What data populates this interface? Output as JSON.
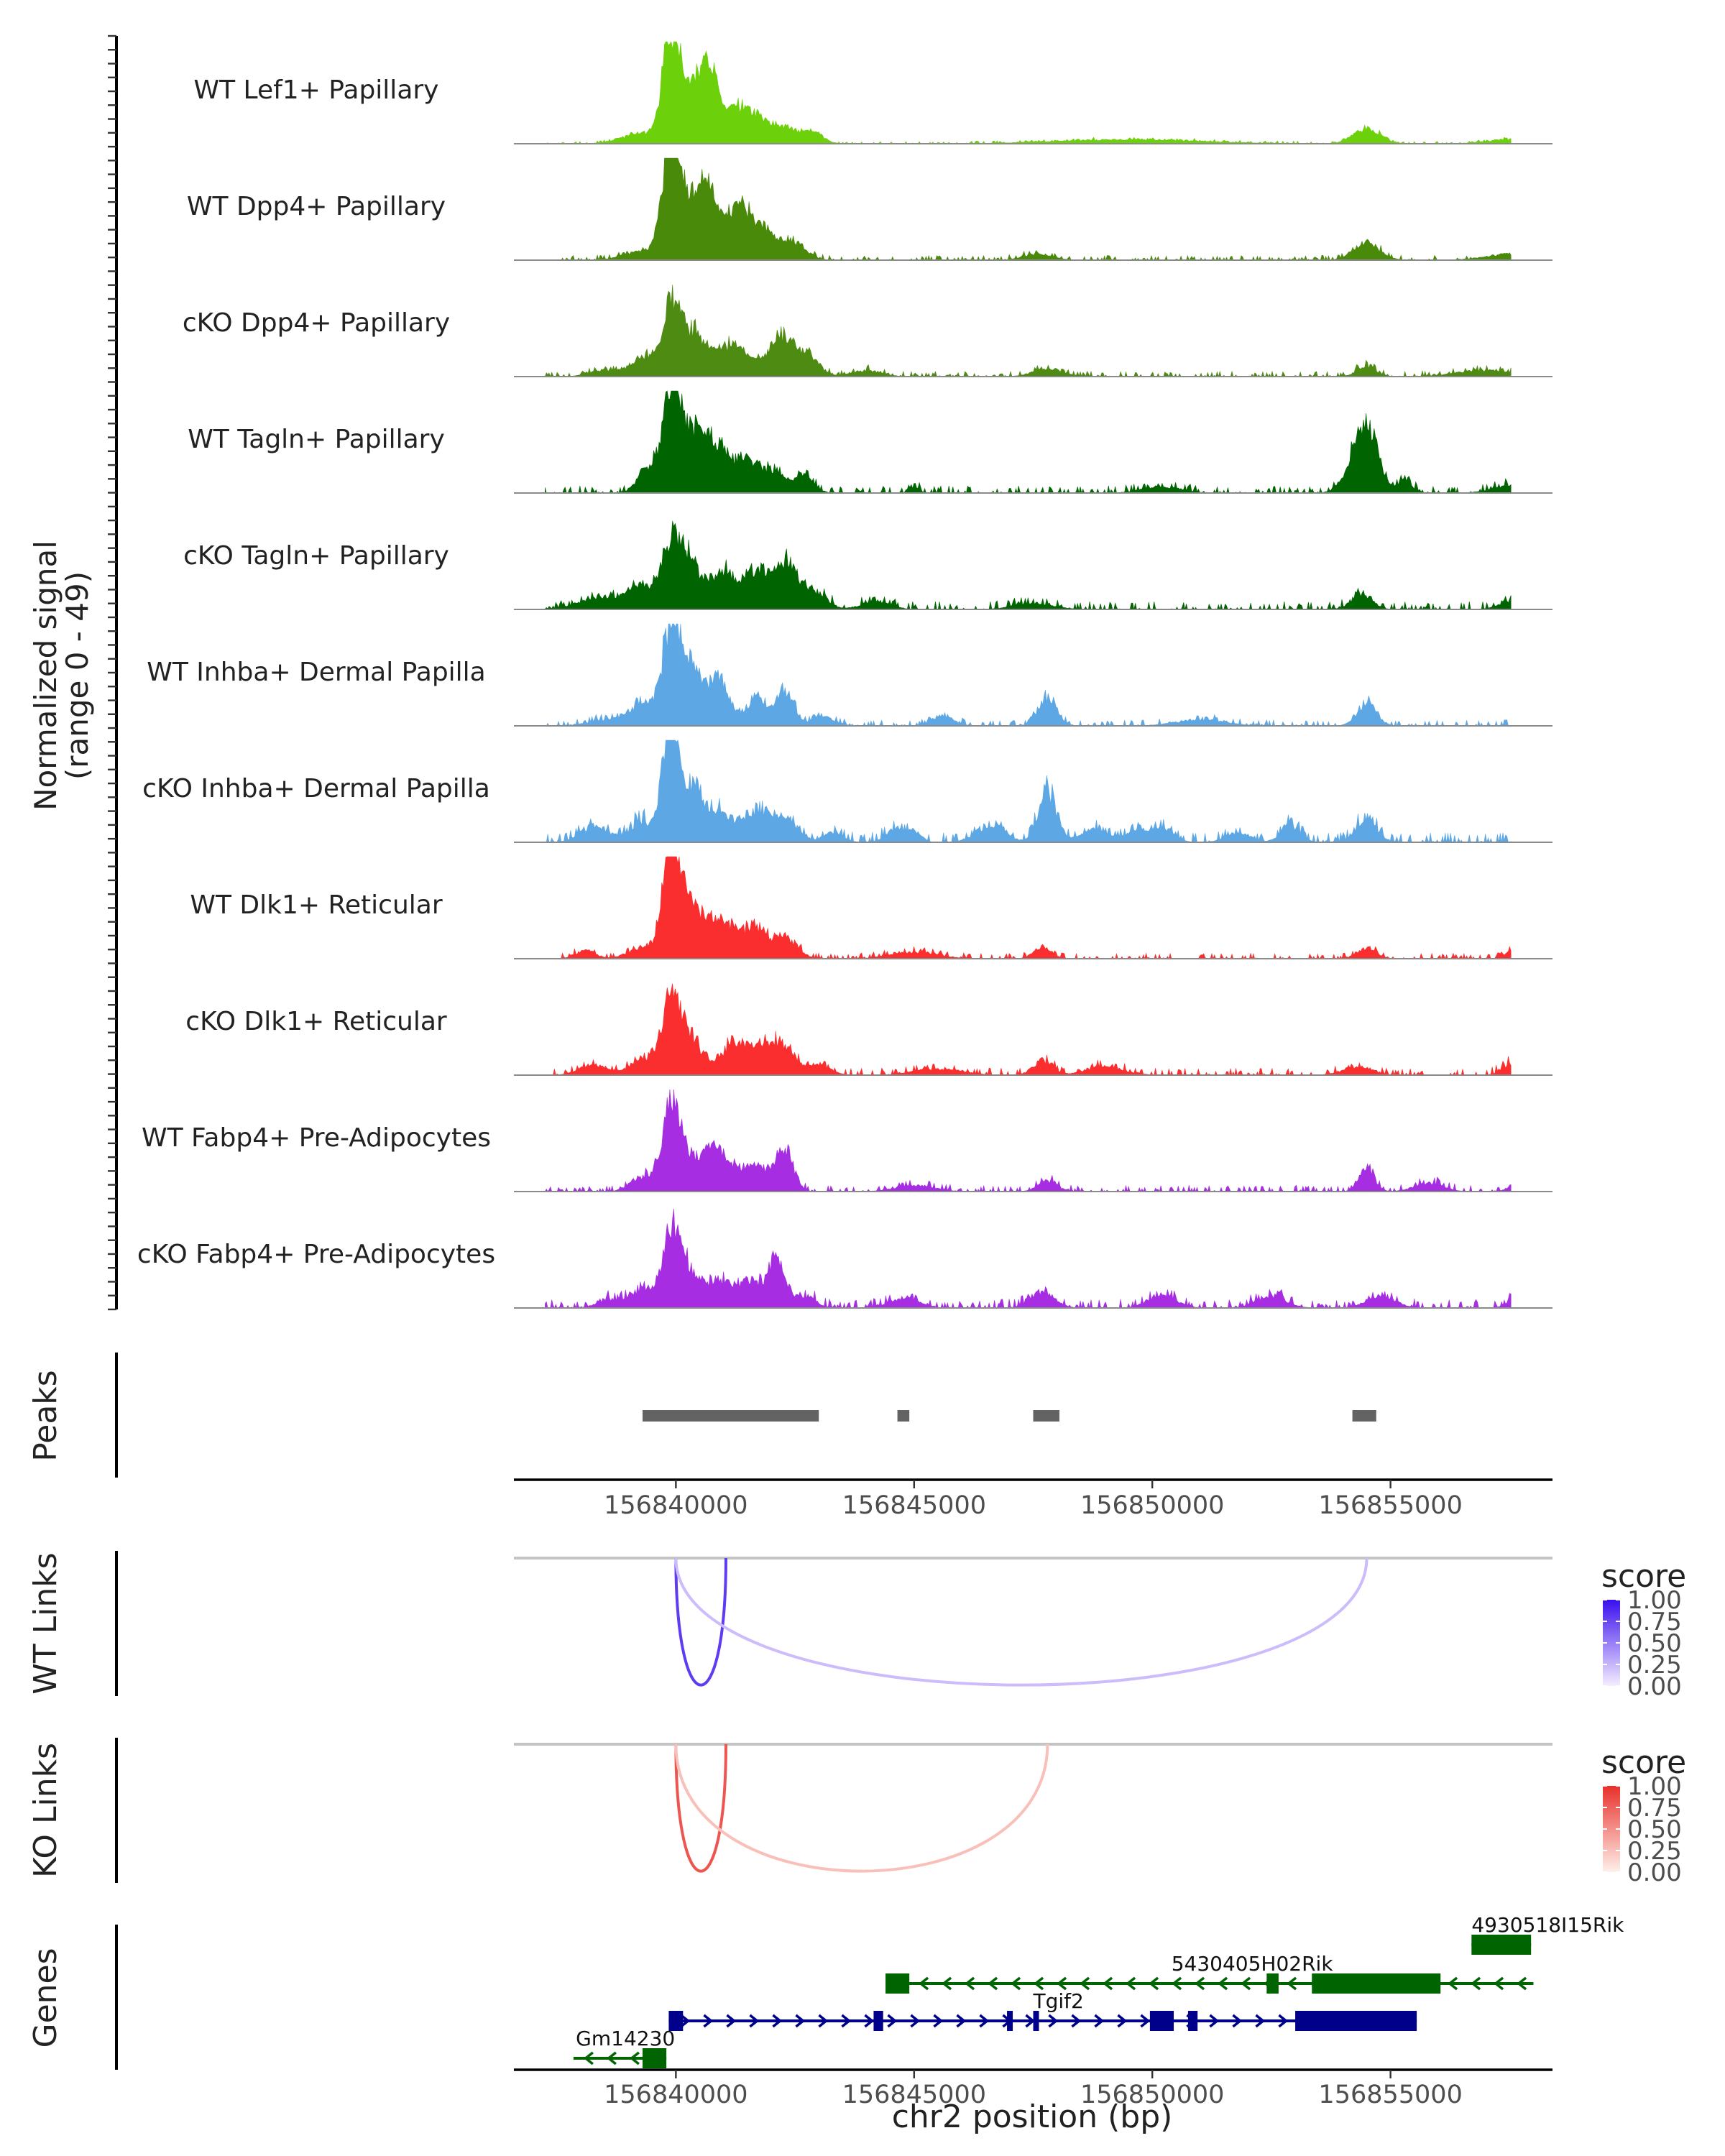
{
  "chart_data": {
    "type": "area",
    "title": "",
    "xlabel": "chr2 position (bp)",
    "ylabel_line1": "Normalized signal",
    "ylabel_line2": "(range 0 - 49)",
    "xlim": [
      156836600,
      156858400
    ],
    "x_ticks": [
      156840000,
      156845000,
      156850000,
      156855000
    ],
    "x_tick_labels": [
      "156840000",
      "156845000",
      "156850000",
      "156855000"
    ],
    "signal_range": [
      0,
      49
    ],
    "coverage_tracks": [
      {
        "name": "WT Lef1+ Papillary",
        "color": "#6CD00A",
        "max": 49,
        "peaks": [
          [
            156839300,
            5,
            400
          ],
          [
            156839900,
            49,
            180
          ],
          [
            156840300,
            20,
            250
          ],
          [
            156840700,
            32,
            220
          ],
          [
            156841300,
            15,
            250
          ],
          [
            156841800,
            10,
            300
          ],
          [
            156842400,
            6,
            250
          ],
          [
            156842900,
            5,
            200
          ],
          [
            156849500,
            2,
            1500
          ],
          [
            156854500,
            7,
            280
          ],
          [
            156857500,
            2,
            500
          ]
        ],
        "noise": 0.6,
        "seed": 11
      },
      {
        "name": "WT Dpp4+ Papillary",
        "color": "#4A8A0A",
        "max": 49,
        "peaks": [
          [
            156839300,
            4,
            400
          ],
          [
            156839900,
            55,
            180
          ],
          [
            156840300,
            22,
            250
          ],
          [
            156840700,
            30,
            220
          ],
          [
            156841300,
            22,
            250
          ],
          [
            156841800,
            14,
            300
          ],
          [
            156842500,
            8,
            250
          ],
          [
            156847600,
            3,
            300
          ],
          [
            156854500,
            8,
            280
          ],
          [
            156857500,
            3,
            500
          ]
        ],
        "noise": 1.2,
        "seed": 23
      },
      {
        "name": "cKO Dpp4+ Papillary",
        "color": "#4E8B12",
        "max": 49,
        "peaks": [
          [
            156838500,
            3,
            300
          ],
          [
            156839300,
            9,
            250
          ],
          [
            156839900,
            32,
            200
          ],
          [
            156840400,
            20,
            280
          ],
          [
            156841200,
            15,
            300
          ],
          [
            156842200,
            20,
            280
          ],
          [
            156842800,
            9,
            220
          ],
          [
            156844000,
            3,
            300
          ],
          [
            156847800,
            4,
            300
          ],
          [
            156854500,
            5,
            200
          ],
          [
            156857000,
            3,
            600
          ]
        ],
        "noise": 1.3,
        "seed": 37
      },
      {
        "name": "WT Tagln+ Papillary",
        "color": "#006400",
        "max": 49,
        "peaks": [
          [
            156839400,
            12,
            200
          ],
          [
            156839900,
            52,
            170
          ],
          [
            156840300,
            28,
            220
          ],
          [
            156840800,
            24,
            220
          ],
          [
            156841400,
            15,
            250
          ],
          [
            156842000,
            10,
            300
          ],
          [
            156842700,
            7,
            200
          ],
          [
            156845000,
            3,
            100
          ],
          [
            156850200,
            3,
            400
          ],
          [
            156854300,
            18,
            250
          ],
          [
            156854600,
            22,
            200
          ],
          [
            156855300,
            6,
            150
          ],
          [
            156857600,
            4,
            400
          ]
        ],
        "noise": 1.8,
        "seed": 41
      },
      {
        "name": "cKO Tagln+ Papillary",
        "color": "#006400",
        "max": 49,
        "peaks": [
          [
            156838500,
            6,
            500
          ],
          [
            156839300,
            10,
            250
          ],
          [
            156839900,
            30,
            200
          ],
          [
            156840300,
            20,
            240
          ],
          [
            156841000,
            17,
            260
          ],
          [
            156841700,
            19,
            260
          ],
          [
            156842300,
            22,
            220
          ],
          [
            156842900,
            9,
            250
          ],
          [
            156844200,
            4,
            300
          ],
          [
            156847500,
            3,
            400
          ],
          [
            156854400,
            7,
            220
          ],
          [
            156857600,
            4,
            300
          ]
        ],
        "noise": 2.0,
        "seed": 53
      },
      {
        "name": "WT Inhba+ Dermal Papilla",
        "color": "#5DA7E5",
        "max": 49,
        "peaks": [
          [
            156838600,
            3,
            400
          ],
          [
            156839300,
            10,
            250
          ],
          [
            156839900,
            45,
            190
          ],
          [
            156840300,
            27,
            240
          ],
          [
            156840900,
            22,
            220
          ],
          [
            156841700,
            14,
            220
          ],
          [
            156842300,
            17,
            180
          ],
          [
            156843100,
            4,
            250
          ],
          [
            156845600,
            5,
            220
          ],
          [
            156847800,
            14,
            190
          ],
          [
            156851000,
            3,
            500
          ],
          [
            156854500,
            11,
            200
          ]
        ],
        "noise": 1.5,
        "seed": 61
      },
      {
        "name": "cKO Inhba+ Dermal Papilla",
        "color": "#5DA7E5",
        "max": 49,
        "peaks": [
          [
            156838300,
            8,
            300
          ],
          [
            156839300,
            10,
            250
          ],
          [
            156839900,
            64,
            160
          ],
          [
            156840400,
            24,
            240
          ],
          [
            156841000,
            13,
            250
          ],
          [
            156841700,
            15,
            250
          ],
          [
            156842300,
            12,
            250
          ],
          [
            156843300,
            5,
            200
          ],
          [
            156844600,
            6,
            200
          ],
          [
            156845000,
            5,
            150
          ],
          [
            156846600,
            8,
            300
          ],
          [
            156847800,
            24,
            190
          ],
          [
            156848800,
            6,
            300
          ],
          [
            156849800,
            6,
            300
          ],
          [
            156850300,
            5,
            200
          ],
          [
            156851800,
            5,
            250
          ],
          [
            156852900,
            8,
            200
          ],
          [
            156854500,
            12,
            200
          ]
        ],
        "noise": 2.4,
        "seed": 71
      },
      {
        "name": "WT Dlk1+ Reticular",
        "color": "#FA2E2E",
        "max": 49,
        "peaks": [
          [
            156838100,
            4,
            200
          ],
          [
            156839300,
            5,
            300
          ],
          [
            156839900,
            56,
            170
          ],
          [
            156840300,
            25,
            250
          ],
          [
            156840900,
            18,
            250
          ],
          [
            156841600,
            15,
            280
          ],
          [
            156842300,
            10,
            250
          ],
          [
            156845000,
            3,
            500
          ],
          [
            156847700,
            6,
            180
          ],
          [
            156854500,
            5,
            200
          ],
          [
            156857700,
            6,
            200
          ]
        ],
        "noise": 1.4,
        "seed": 83
      },
      {
        "name": "cKO Dlk1+ Reticular",
        "color": "#FA2E2E",
        "max": 49,
        "peaks": [
          [
            156838300,
            5,
            300
          ],
          [
            156839300,
            8,
            250
          ],
          [
            156839900,
            34,
            190
          ],
          [
            156840300,
            17,
            250
          ],
          [
            156841200,
            15,
            260
          ],
          [
            156841800,
            14,
            260
          ],
          [
            156842300,
            12,
            220
          ],
          [
            156843000,
            5,
            250
          ],
          [
            156845500,
            3,
            500
          ],
          [
            156847700,
            7,
            200
          ],
          [
            156849000,
            4,
            400
          ],
          [
            156854300,
            4,
            300
          ],
          [
            156857600,
            6,
            220
          ]
        ],
        "noise": 1.8,
        "seed": 97
      },
      {
        "name": "WT Fabp4+ Pre-Adipocytes",
        "color": "#A62DE2",
        "max": 49,
        "peaks": [
          [
            156839300,
            7,
            250
          ],
          [
            156839900,
            40,
            180
          ],
          [
            156840300,
            13,
            250
          ],
          [
            156840800,
            19,
            220
          ],
          [
            156841300,
            9,
            250
          ],
          [
            156841800,
            10,
            250
          ],
          [
            156842300,
            18,
            180
          ],
          [
            156845000,
            3,
            400
          ],
          [
            156847800,
            5,
            200
          ],
          [
            156854500,
            11,
            160
          ],
          [
            156855800,
            4,
            300
          ],
          [
            156857700,
            5,
            180
          ]
        ],
        "noise": 1.6,
        "seed": 103
      },
      {
        "name": "cKO Fabp4+ Pre-Adipocytes",
        "color": "#A62DE2",
        "max": 49,
        "peaks": [
          [
            156838600,
            4,
            250
          ],
          [
            156839300,
            9,
            250
          ],
          [
            156839900,
            35,
            190
          ],
          [
            156840300,
            16,
            250
          ],
          [
            156840900,
            12,
            240
          ],
          [
            156841500,
            12,
            240
          ],
          [
            156842100,
            23,
            180
          ],
          [
            156842700,
            6,
            220
          ],
          [
            156844800,
            5,
            300
          ],
          [
            156847700,
            8,
            250
          ],
          [
            156850200,
            6,
            300
          ],
          [
            156852500,
            6,
            300
          ],
          [
            156854800,
            6,
            300
          ],
          [
            156857700,
            6,
            200
          ]
        ],
        "noise": 2.2,
        "seed": 113
      }
    ],
    "peaks_track": {
      "label": "Peaks",
      "color": "#636363",
      "regions": [
        [
          156839300,
          156843000
        ],
        [
          156844650,
          156844900
        ],
        [
          156847500,
          156848050
        ],
        [
          156854200,
          156854700
        ]
      ]
    },
    "link_tracks": [
      {
        "label": "WT Links",
        "legend_title": "score",
        "color_low": "#F5EDFF",
        "color_high": "#3A10EE",
        "legend_ticks": [
          "1.00",
          "0.75",
          "0.50",
          "0.25",
          "0.00"
        ],
        "links": [
          {
            "start": 156840000,
            "end": 156841050,
            "score": 0.8,
            "depth": 0.92
          },
          {
            "start": 156840000,
            "end": 156854500,
            "score": 0.22,
            "depth": 0.92
          }
        ]
      },
      {
        "label": "KO Links",
        "legend_title": "score",
        "color_low": "#FFF0EA",
        "color_high": "#E8302A",
        "legend_ticks": [
          "1.00",
          "0.75",
          "0.50",
          "0.25",
          "0.00"
        ],
        "links": [
          {
            "start": 156840000,
            "end": 156841050,
            "score": 0.8,
            "depth": 0.92
          },
          {
            "start": 156840000,
            "end": 156847800,
            "score": 0.25,
            "depth": 0.92
          }
        ]
      }
    ],
    "genes_track": {
      "label": "Genes",
      "genes": [
        {
          "name": "4930518I15Rik",
          "strand": "+",
          "color": "#006400",
          "row": 0,
          "start": 156856700,
          "end": 156857950,
          "exons": [
            [
              156856700,
              156857950
            ]
          ],
          "label_x": 156856700
        },
        {
          "name": "5430405H02Rik",
          "strand": "-",
          "color": "#006400",
          "row": 1,
          "start": 156844400,
          "end": 156858000,
          "exons": [
            [
              156844400,
              156844900
            ],
            [
              156852400,
              156852650
            ],
            [
              156853350,
              156856050
            ]
          ],
          "label_x": 156850400
        },
        {
          "name": "Tgif2",
          "strand": "+",
          "color": "#00008B",
          "row": 2,
          "start": 156839850,
          "end": 156855550,
          "exons": [
            [
              156839850,
              156840150
            ],
            [
              156844150,
              156844350
            ],
            [
              156846950,
              156847050
            ],
            [
              156847500,
              156847600
            ],
            [
              156849950,
              156850450
            ],
            [
              156850750,
              156850950
            ],
            [
              156853000,
              156855550
            ]
          ],
          "label_x": 156847500
        },
        {
          "name": "Gm14230",
          "strand": "-",
          "color": "#006400",
          "row": 3,
          "start": 156837850,
          "end": 156839800,
          "exons": [
            [
              156839300,
              156839800
            ]
          ],
          "label_x": 156837900
        }
      ]
    }
  }
}
